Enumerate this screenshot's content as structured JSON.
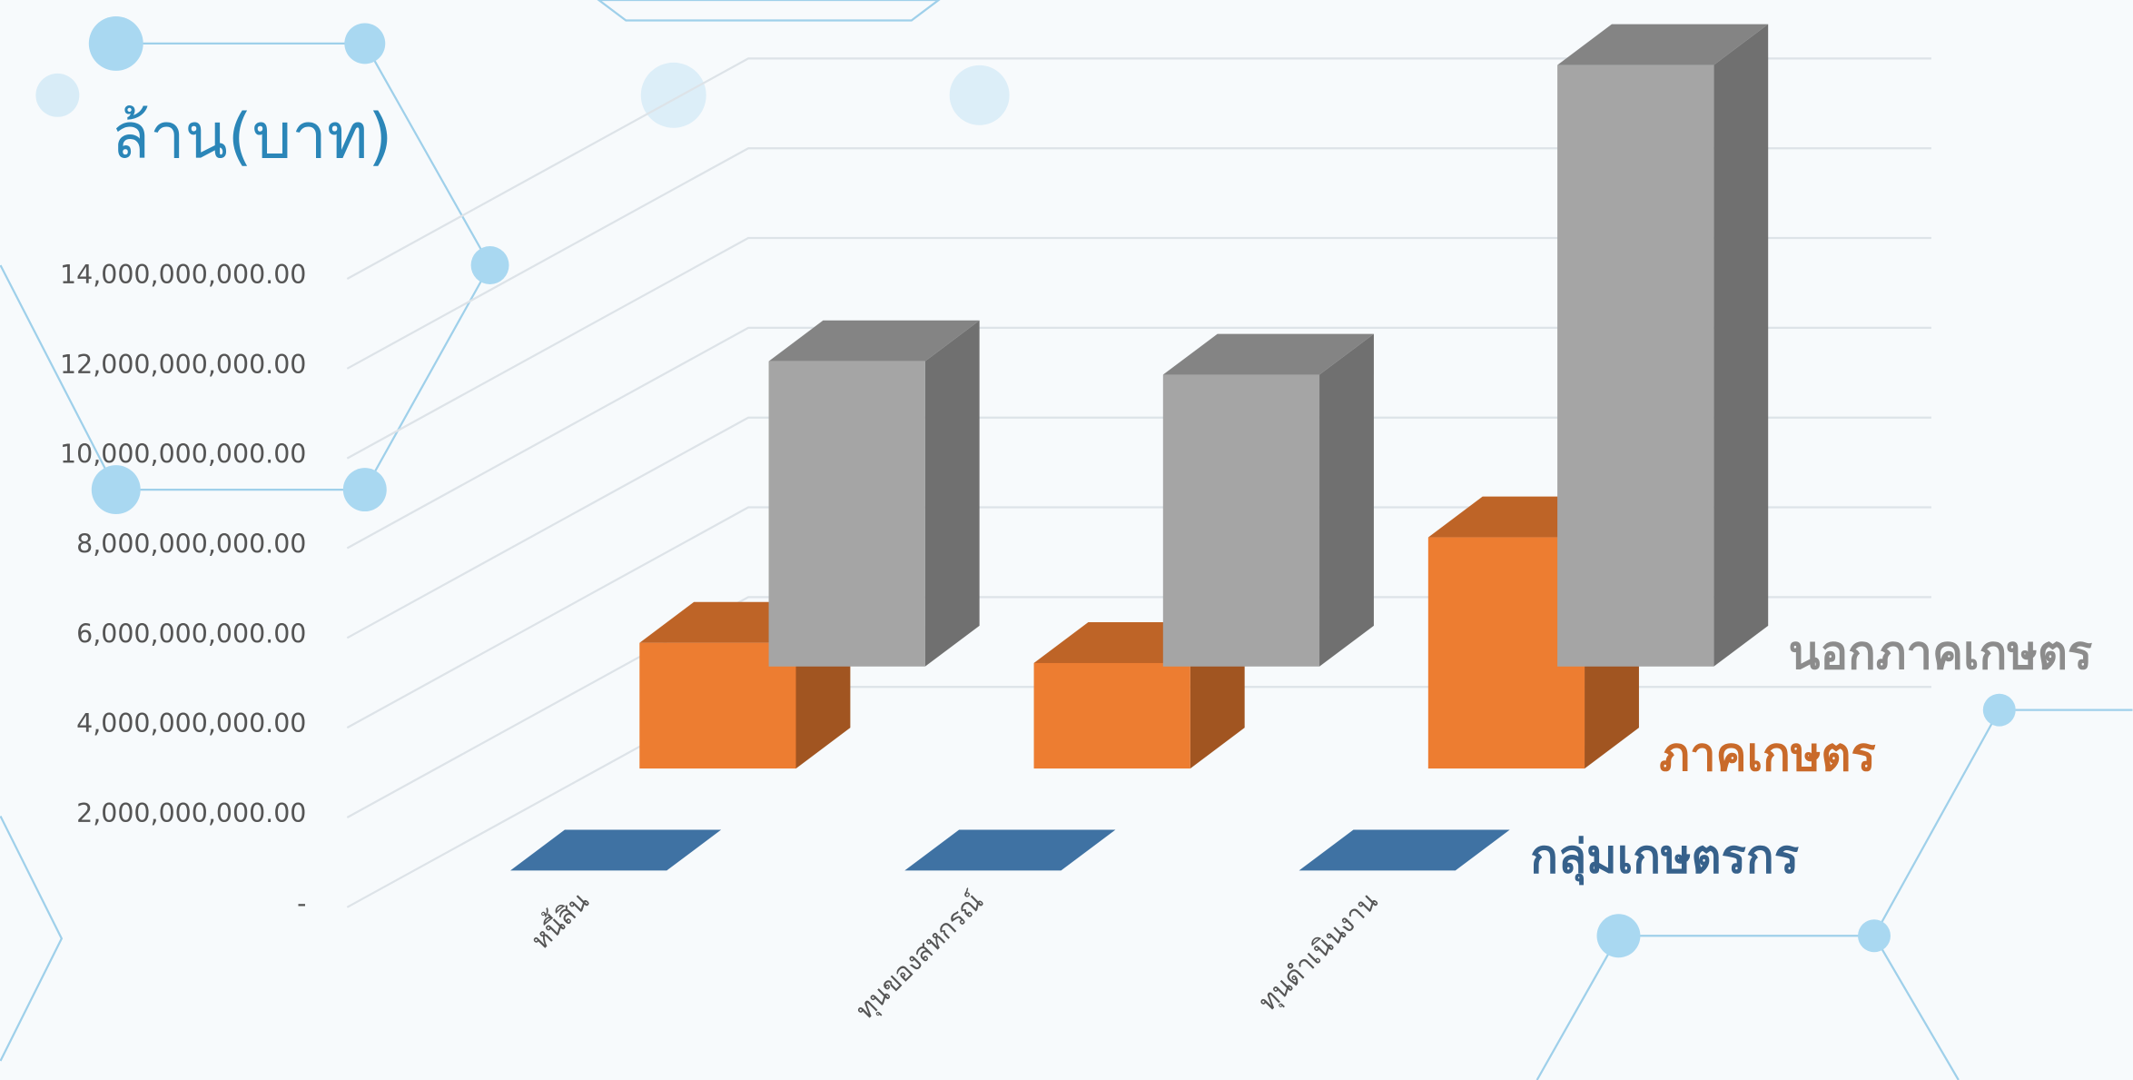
{
  "chart_data": {
    "type": "bar",
    "y_label": "ล้าน(บาท)",
    "categories": [
      "หนี้สิน",
      "ทุนของสหกรณ์",
      "ทุนดำเนินงาน"
    ],
    "series": [
      {
        "name": "กลุ่มเกษตรกร",
        "color": "#3f72a3",
        "values": [
          0,
          0,
          0
        ]
      },
      {
        "name": "ภาคเกษตร",
        "color": "#ed7d31",
        "values": [
          2800000000,
          2350000000,
          5150000000
        ]
      },
      {
        "name": "นอกภาคเกษตร",
        "color": "#a5a5a5",
        "values": [
          6800000000,
          6500000000,
          13400000000
        ]
      }
    ],
    "ylim": [
      0,
      14000000000
    ],
    "yticks": [
      {
        "value": 0,
        "label": "-"
      },
      {
        "value": 2000000000,
        "label": "2,000,000,000.00"
      },
      {
        "value": 4000000000,
        "label": "4,000,000,000.00"
      },
      {
        "value": 6000000000,
        "label": "6,000,000,000.00"
      },
      {
        "value": 8000000000,
        "label": "8,000,000,000.00"
      },
      {
        "value": 10000000000,
        "label": "10,000,000,000.00"
      },
      {
        "value": 12000000000,
        "label": "12,000,000,000.00"
      },
      {
        "value": 14000000000,
        "label": "14,000,000,000.00"
      }
    ],
    "grid": true
  }
}
